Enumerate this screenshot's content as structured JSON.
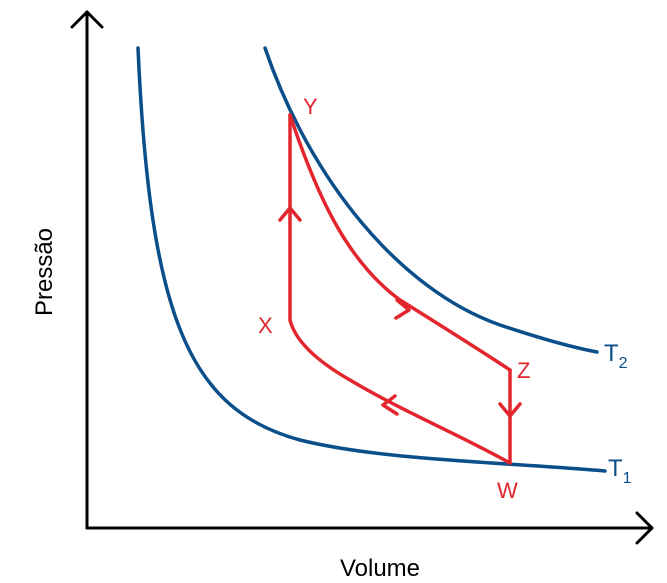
{
  "axes": {
    "x_label": "Volume",
    "y_label": "Pressão"
  },
  "isotherms": [
    {
      "name": "T",
      "subscript": "1",
      "color": "#0b4f8a"
    },
    {
      "name": "T",
      "subscript": "2",
      "color": "#0b4f8a"
    }
  ],
  "cycle": {
    "color": "#e3262d",
    "points": [
      "X",
      "Y",
      "Z",
      "W"
    ]
  }
}
